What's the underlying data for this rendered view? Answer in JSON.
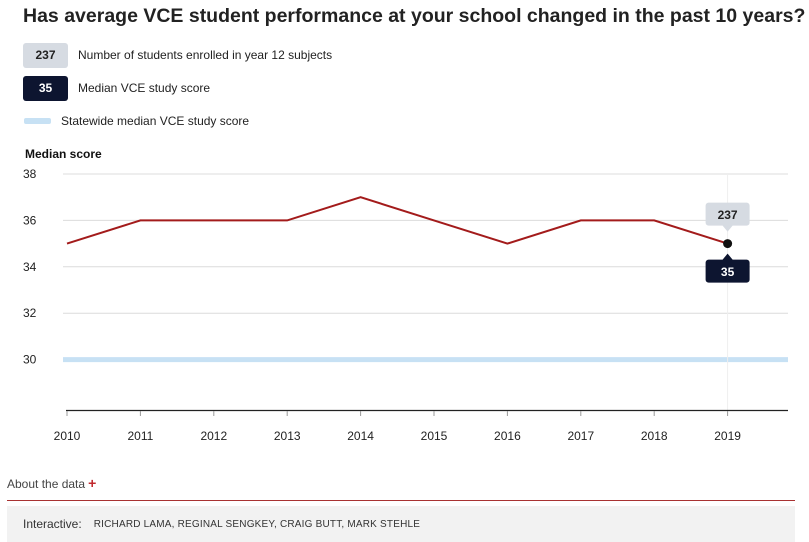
{
  "header": {
    "title": "Has average VCE student performance at your school changed in the past 10 years?"
  },
  "legend": [
    {
      "badge": "237",
      "label": "Number of students enrolled in year 12 subjects"
    },
    {
      "badge": "35",
      "label": "Median VCE study score"
    },
    {
      "badge": "",
      "label": "Statewide median VCE study score"
    }
  ],
  "chart_data": {
    "type": "line",
    "ylabel": "Median score",
    "categories": [
      "2010",
      "2011",
      "2012",
      "2013",
      "2014",
      "2015",
      "2016",
      "2017",
      "2018",
      "2019"
    ],
    "series": [
      {
        "name": "Median VCE study score",
        "values": [
          35,
          36,
          36,
          36,
          37,
          36,
          35,
          36,
          36,
          35
        ],
        "color": "#a31b1b"
      },
      {
        "name": "Statewide median VCE study score",
        "values": [
          30,
          30,
          30,
          30,
          30,
          30,
          30,
          30,
          30,
          30
        ],
        "color": "#c7e1f4"
      }
    ],
    "y_ticks": [
      "38",
      "36",
      "34",
      "32",
      "30"
    ],
    "ylim": [
      28,
      38
    ],
    "grid": true,
    "highlight": {
      "year": "2019",
      "students": "237",
      "median": "35"
    }
  },
  "footer": {
    "about_label": "About the data",
    "about_icon": "plus-icon",
    "credit_label": "Interactive:",
    "credit_names": "RICHARD LAMA, REGINAL SENGKEY, CRAIG BUTT, MARK STEHLE"
  },
  "colors": {
    "line": "#a31b1b",
    "statewide": "#c7e1f4",
    "badge_dark": "#0d1530",
    "badge_light": "#d6dbe2",
    "accent": "#c0282d"
  }
}
